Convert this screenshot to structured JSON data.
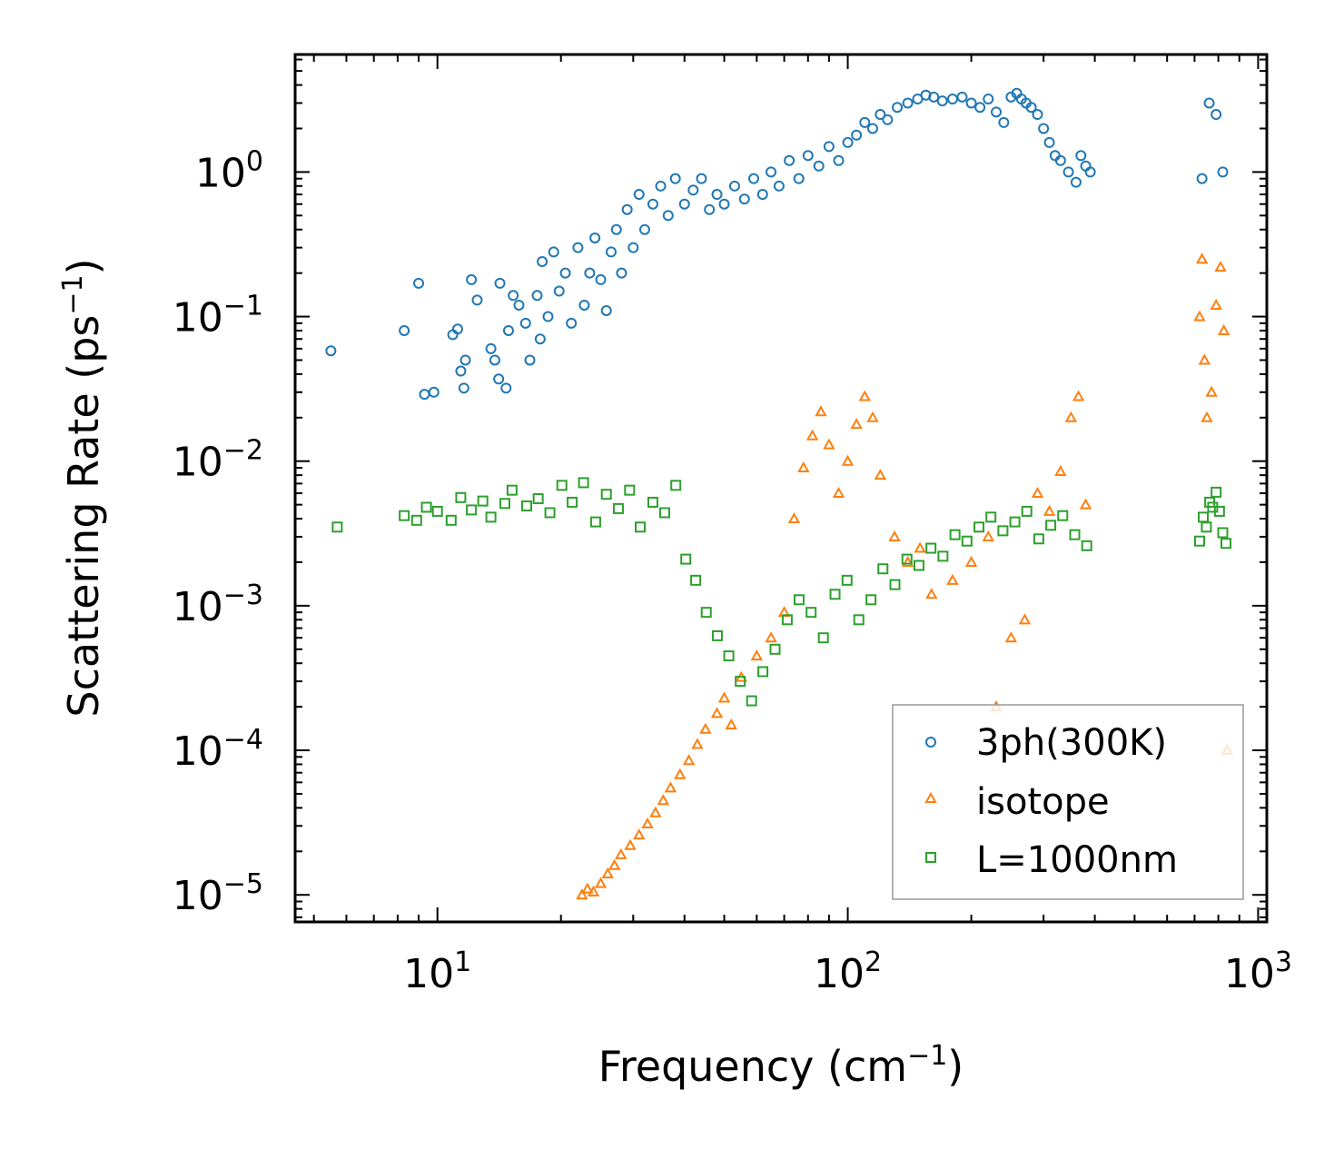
{
  "chart_data": {
    "type": "scatter",
    "title": "",
    "xlabel": "Frequency (cm",
    "xlabel_sup": "−1",
    "xlabel_end": ")",
    "ylabel": "Scattering Rate (ps",
    "ylabel_sup": "−1",
    "ylabel_end": ")",
    "x_scale": "log",
    "y_scale": "log",
    "xlim": [
      4.5,
      1050
    ],
    "ylim": [
      6.5e-06,
      6.5
    ],
    "x_ticks": [
      {
        "value": 10,
        "base": "10",
        "exp": "1"
      },
      {
        "value": 100,
        "base": "10",
        "exp": "2"
      },
      {
        "value": 1000,
        "base": "10",
        "exp": "3"
      }
    ],
    "y_ticks": [
      {
        "value": 1,
        "base": "10",
        "exp": "0"
      },
      {
        "value": 0.1,
        "base": "10",
        "exp": "−1"
      },
      {
        "value": 0.01,
        "base": "10",
        "exp": "−2"
      },
      {
        "value": 0.001,
        "base": "10",
        "exp": "−3"
      },
      {
        "value": 0.0001,
        "base": "10",
        "exp": "−4"
      },
      {
        "value": 1e-05,
        "base": "10",
        "exp": "−5"
      }
    ],
    "legend_position": "lower-right",
    "series": [
      {
        "name": "3ph(300K)",
        "marker": "circle",
        "color": "#1f77b4",
        "points": [
          [
            5.5,
            0.058
          ],
          [
            8.3,
            0.08
          ],
          [
            9,
            0.17
          ],
          [
            9.3,
            0.029
          ],
          [
            9.8,
            0.03
          ],
          [
            10.9,
            0.075
          ],
          [
            11.2,
            0.082
          ],
          [
            11.4,
            0.042
          ],
          [
            11.6,
            0.032
          ],
          [
            11.7,
            0.05
          ],
          [
            12.1,
            0.18
          ],
          [
            12.5,
            0.13
          ],
          [
            13.5,
            0.06
          ],
          [
            13.8,
            0.05
          ],
          [
            14.2,
            0.17
          ],
          [
            14.1,
            0.037
          ],
          [
            14.7,
            0.032
          ],
          [
            14.9,
            0.08
          ],
          [
            15.3,
            0.14
          ],
          [
            15.8,
            0.12
          ],
          [
            16.4,
            0.09
          ],
          [
            16.8,
            0.05
          ],
          [
            17.5,
            0.14
          ],
          [
            17.8,
            0.07
          ],
          [
            18,
            0.24
          ],
          [
            18.6,
            0.1
          ],
          [
            19.2,
            0.28
          ],
          [
            19.8,
            0.15
          ],
          [
            20.5,
            0.2
          ],
          [
            21.2,
            0.09
          ],
          [
            22,
            0.3
          ],
          [
            22.8,
            0.12
          ],
          [
            23.5,
            0.2
          ],
          [
            24.2,
            0.35
          ],
          [
            25,
            0.18
          ],
          [
            25.8,
            0.11
          ],
          [
            26.5,
            0.28
          ],
          [
            27.3,
            0.4
          ],
          [
            28.1,
            0.2
          ],
          [
            29,
            0.55
          ],
          [
            30,
            0.3
          ],
          [
            31,
            0.7
          ],
          [
            32,
            0.4
          ],
          [
            33.5,
            0.6
          ],
          [
            35,
            0.8
          ],
          [
            36.5,
            0.5
          ],
          [
            38,
            0.9
          ],
          [
            40,
            0.6
          ],
          [
            42,
            0.75
          ],
          [
            44,
            0.9
          ],
          [
            46,
            0.55
          ],
          [
            48,
            0.7
          ],
          [
            50,
            0.6
          ],
          [
            53,
            0.8
          ],
          [
            56,
            0.65
          ],
          [
            59,
            0.9
          ],
          [
            62,
            0.7
          ],
          [
            65,
            1.0
          ],
          [
            68,
            0.8
          ],
          [
            72,
            1.2
          ],
          [
            76,
            0.9
          ],
          [
            80,
            1.3
          ],
          [
            85,
            1.1
          ],
          [
            90,
            1.5
          ],
          [
            95,
            1.2
          ],
          [
            100,
            1.6
          ],
          [
            105,
            1.8
          ],
          [
            110,
            2.2
          ],
          [
            115,
            2.0
          ],
          [
            120,
            2.5
          ],
          [
            125,
            2.3
          ],
          [
            132,
            2.8
          ],
          [
            140,
            3.0
          ],
          [
            148,
            3.2
          ],
          [
            155,
            3.4
          ],
          [
            162,
            3.3
          ],
          [
            170,
            3.1
          ],
          [
            180,
            3.2
          ],
          [
            190,
            3.3
          ],
          [
            200,
            3.0
          ],
          [
            210,
            2.8
          ],
          [
            220,
            3.2
          ],
          [
            230,
            2.6
          ],
          [
            240,
            2.2
          ],
          [
            250,
            3.3
          ],
          [
            258,
            3.5
          ],
          [
            265,
            3.2
          ],
          [
            272,
            3.0
          ],
          [
            280,
            2.8
          ],
          [
            290,
            2.5
          ],
          [
            300,
            2.0
          ],
          [
            310,
            1.6
          ],
          [
            320,
            1.3
          ],
          [
            330,
            1.2
          ],
          [
            345,
            1.0
          ],
          [
            360,
            0.85
          ],
          [
            370,
            1.3
          ],
          [
            380,
            1.1
          ],
          [
            390,
            1.0
          ],
          [
            730,
            0.9
          ],
          [
            760,
            3.0
          ],
          [
            790,
            2.5
          ],
          [
            820,
            1.0
          ]
        ]
      },
      {
        "name": "isotope",
        "marker": "triangle",
        "color": "#ff7f0e",
        "points": [
          [
            22.5,
            1e-05
          ],
          [
            23.2,
            1.1e-05
          ],
          [
            24,
            1.05e-05
          ],
          [
            25,
            1.2e-05
          ],
          [
            26,
            1.4e-05
          ],
          [
            27,
            1.6e-05
          ],
          [
            28,
            1.9e-05
          ],
          [
            29.5,
            2.2e-05
          ],
          [
            31,
            2.6e-05
          ],
          [
            32.5,
            3.1e-05
          ],
          [
            34,
            3.7e-05
          ],
          [
            35.5,
            4.5e-05
          ],
          [
            37,
            5.5e-05
          ],
          [
            39,
            6.8e-05
          ],
          [
            41,
            8.5e-05
          ],
          [
            43,
            0.00011
          ],
          [
            45,
            0.00014
          ],
          [
            48,
            0.00018
          ],
          [
            50,
            0.00023
          ],
          [
            52,
            0.00015
          ],
          [
            55,
            0.00032
          ],
          [
            60,
            0.00045
          ],
          [
            65,
            0.0006
          ],
          [
            70,
            0.0009
          ],
          [
            74,
            0.004
          ],
          [
            78,
            0.009
          ],
          [
            82,
            0.015
          ],
          [
            86,
            0.022
          ],
          [
            90,
            0.013
          ],
          [
            95,
            0.006
          ],
          [
            100,
            0.01
          ],
          [
            105,
            0.018
          ],
          [
            110,
            0.028
          ],
          [
            115,
            0.02
          ],
          [
            120,
            0.008
          ],
          [
            130,
            0.003
          ],
          [
            140,
            0.002
          ],
          [
            150,
            0.0025
          ],
          [
            160,
            0.0012
          ],
          [
            180,
            0.0015
          ],
          [
            200,
            0.002
          ],
          [
            220,
            0.003
          ],
          [
            230,
            0.0002
          ],
          [
            250,
            0.0006
          ],
          [
            270,
            0.0008
          ],
          [
            290,
            0.006
          ],
          [
            310,
            0.0045
          ],
          [
            330,
            0.0085
          ],
          [
            350,
            0.02
          ],
          [
            365,
            0.028
          ],
          [
            380,
            0.005
          ],
          [
            720,
            0.1
          ],
          [
            730,
            0.25
          ],
          [
            740,
            0.05
          ],
          [
            750,
            0.02
          ],
          [
            770,
            0.03
          ],
          [
            790,
            0.12
          ],
          [
            810,
            0.22
          ],
          [
            825,
            0.08
          ],
          [
            840,
            0.0001
          ]
        ]
      },
      {
        "name": "L=1000nm",
        "marker": "square",
        "color": "#2ca02c",
        "points": [
          [
            5.7,
            0.0035
          ],
          [
            8.3,
            0.0042
          ],
          [
            8.9,
            0.0039
          ],
          [
            9.4,
            0.0048
          ],
          [
            10.0,
            0.0045
          ],
          [
            10.8,
            0.0039
          ],
          [
            11.4,
            0.0056
          ],
          [
            12.1,
            0.0046
          ],
          [
            12.9,
            0.0053
          ],
          [
            13.5,
            0.0041
          ],
          [
            14.6,
            0.0051
          ],
          [
            15.2,
            0.0063
          ],
          [
            16.5,
            0.0049
          ],
          [
            17.6,
            0.0055
          ],
          [
            18.8,
            0.0044
          ],
          [
            20.1,
            0.0068
          ],
          [
            21.3,
            0.0052
          ],
          [
            22.7,
            0.0071
          ],
          [
            24.3,
            0.0038
          ],
          [
            25.8,
            0.0059
          ],
          [
            27.6,
            0.0047
          ],
          [
            29.4,
            0.0063
          ],
          [
            31.2,
            0.0035
          ],
          [
            33.5,
            0.0052
          ],
          [
            35.8,
            0.0044
          ],
          [
            38.1,
            0.0068
          ],
          [
            40.3,
            0.0021
          ],
          [
            42.6,
            0.0015
          ],
          [
            45.2,
            0.0009
          ],
          [
            48.1,
            0.00062
          ],
          [
            51.3,
            0.00045
          ],
          [
            54.7,
            0.0003
          ],
          [
            58.3,
            0.00022
          ],
          [
            62.1,
            0.00035
          ],
          [
            66.5,
            0.0005
          ],
          [
            71.2,
            0.0008
          ],
          [
            76.1,
            0.0011
          ],
          [
            81.4,
            0.0009
          ],
          [
            87.2,
            0.0006
          ],
          [
            93.1,
            0.0012
          ],
          [
            99.6,
            0.0015
          ],
          [
            106.4,
            0.0008
          ],
          [
            113.9,
            0.0011
          ],
          [
            121.8,
            0.0018
          ],
          [
            130.3,
            0.0014
          ],
          [
            139.4,
            0.0021
          ],
          [
            149.1,
            0.0019
          ],
          [
            159.5,
            0.0025
          ],
          [
            170.6,
            0.0022
          ],
          [
            182.5,
            0.0031
          ],
          [
            195.2,
            0.0028
          ],
          [
            208.8,
            0.0035
          ],
          [
            223.3,
            0.0041
          ],
          [
            238.8,
            0.0033
          ],
          [
            255.4,
            0.0038
          ],
          [
            273.1,
            0.0045
          ],
          [
            292.1,
            0.0029
          ],
          [
            312.4,
            0.0036
          ],
          [
            334.1,
            0.0042
          ],
          [
            357.4,
            0.0031
          ],
          [
            382.2,
            0.0026
          ],
          [
            720,
            0.0028
          ],
          [
            735,
            0.0041
          ],
          [
            748,
            0.0035
          ],
          [
            762,
            0.0052
          ],
          [
            775,
            0.0048
          ],
          [
            790,
            0.0061
          ],
          [
            805,
            0.0045
          ],
          [
            820,
            0.0032
          ],
          [
            835,
            0.0027
          ]
        ]
      }
    ]
  }
}
